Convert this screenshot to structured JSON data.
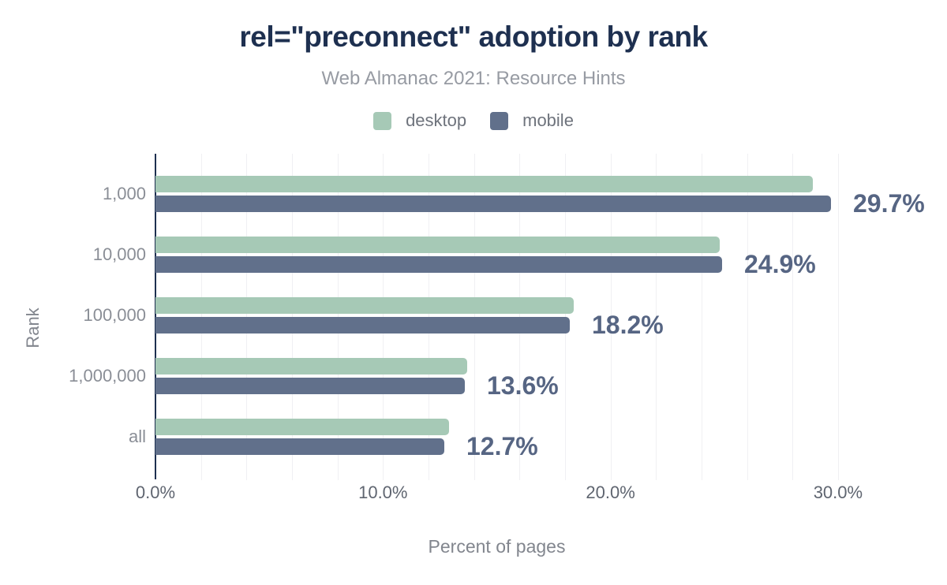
{
  "header": {
    "title": "rel=\"preconnect\" adoption by rank",
    "subtitle": "Web Almanac 2021: Resource Hints"
  },
  "legend": [
    {
      "label": "desktop",
      "color": "#a6c9b6"
    },
    {
      "label": "mobile",
      "color": "#61708b"
    }
  ],
  "chart_data": {
    "type": "bar",
    "orientation": "horizontal",
    "title": "rel=\"preconnect\" adoption by rank",
    "subtitle": "Web Almanac 2021: Resource Hints",
    "categories": [
      "1,000",
      "10,000",
      "100,000",
      "1,000,000",
      "all"
    ],
    "series": [
      {
        "name": "desktop",
        "color": "#a6c9b6",
        "values": [
          28.9,
          24.8,
          18.4,
          13.7,
          12.9
        ]
      },
      {
        "name": "mobile",
        "color": "#61708b",
        "values": [
          29.7,
          24.9,
          18.2,
          13.6,
          12.7
        ]
      }
    ],
    "bar_labels": {
      "labeled_series": "mobile",
      "values": [
        "29.7%",
        "24.9%",
        "18.2%",
        "13.6%",
        "12.7%"
      ]
    },
    "xlabel": "Percent of pages",
    "ylabel": "Rank",
    "xlim": [
      0,
      30
    ],
    "x_ticks": [
      "0.0%",
      "10.0%",
      "20.0%",
      "30.0%"
    ],
    "x_tick_values": [
      0,
      10,
      20,
      30
    ],
    "gridline_step": 2,
    "grid": true,
    "legend_position": "top"
  },
  "colors": {
    "title": "#1e3050",
    "subtitle": "#979ba3",
    "axis_line": "#1e3050",
    "gridline": "#f0f0f3",
    "category_label": "#8a8e96",
    "tick_label": "#5f6570",
    "axis_title": "#82868e",
    "legend_label": "#6e737c",
    "value_label": "#566583",
    "desktop": "#a6c9b6",
    "mobile": "#61708b"
  }
}
